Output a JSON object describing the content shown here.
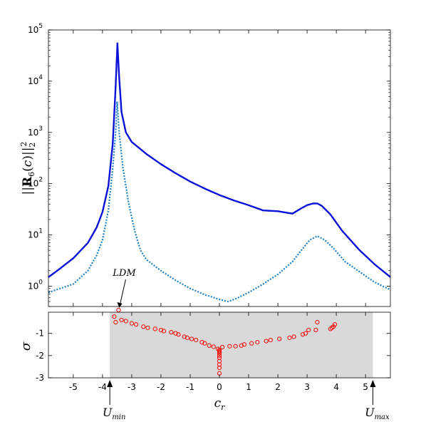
{
  "chart_data": [
    {
      "type": "line",
      "yscale": "log",
      "xlim": [
        -5.85,
        5.85
      ],
      "ylim": [
        0.4,
        100000
      ],
      "ylabel": "||R6(c)||2^2",
      "ylabel_parts": {
        "open": "||",
        "bold": "R",
        "sub": "6",
        "mid": "(",
        "var": "c",
        "close": ")||",
        "sub2": "2",
        "sup": "2"
      },
      "xticks": [
        -5,
        -4,
        -3,
        -2,
        -1,
        0,
        1,
        2,
        3,
        4,
        5
      ],
      "yticks": [
        {
          "value": 1,
          "base": "10",
          "exp": "0"
        },
        {
          "value": 10,
          "base": "10",
          "exp": "1"
        },
        {
          "value": 100,
          "base": "10",
          "exp": "2"
        },
        {
          "value": 1000,
          "base": "10",
          "exp": "3"
        },
        {
          "value": 10000,
          "base": "10",
          "exp": "4"
        },
        {
          "value": 100000,
          "base": "10",
          "exp": "5"
        }
      ],
      "grid": false,
      "series": [
        {
          "style": "solid",
          "color": "#0a12d8",
          "points": [
            [
              -5.85,
              1.5
            ],
            [
              -5.5,
              2.1
            ],
            [
              -5.0,
              3.5
            ],
            [
              -4.5,
              7.0
            ],
            [
              -4.2,
              14.0
            ],
            [
              -4.0,
              28.0
            ],
            [
              -3.8,
              90.0
            ],
            [
              -3.65,
              600.0
            ],
            [
              -3.55,
              8000.0
            ],
            [
              -3.49,
              55000.0
            ],
            [
              -3.43,
              12000.0
            ],
            [
              -3.35,
              2500.0
            ],
            [
              -3.2,
              1000.0
            ],
            [
              -3.0,
              650.0
            ],
            [
              -2.5,
              380.0
            ],
            [
              -2.0,
              240.0
            ],
            [
              -1.5,
              160.0
            ],
            [
              -1.0,
              110.0
            ],
            [
              -0.5,
              80.0
            ],
            [
              0.0,
              60.0
            ],
            [
              0.5,
              47.0
            ],
            [
              1.0,
              38.0
            ],
            [
              1.5,
              30.0
            ],
            [
              2.0,
              29.0
            ],
            [
              2.5,
              26.0
            ],
            [
              2.8,
              33.0
            ],
            [
              3.0,
              38.0
            ],
            [
              3.2,
              41.0
            ],
            [
              3.35,
              41.0
            ],
            [
              3.5,
              37.0
            ],
            [
              3.8,
              25.0
            ],
            [
              4.2,
              12.0
            ],
            [
              4.8,
              5.0
            ],
            [
              5.3,
              2.7
            ],
            [
              5.85,
              1.5
            ]
          ]
        },
        {
          "style": "dotted",
          "color": "#1e7fc4",
          "points": [
            [
              -5.85,
              0.75
            ],
            [
              -5.0,
              1.1
            ],
            [
              -4.5,
              2.0
            ],
            [
              -4.2,
              4.0
            ],
            [
              -4.0,
              8.0
            ],
            [
              -3.8,
              30.0
            ],
            [
              -3.65,
              200.0
            ],
            [
              -3.55,
              1000.0
            ],
            [
              -3.5,
              4000.0
            ],
            [
              -3.43,
              1000.0
            ],
            [
              -3.3,
              200.0
            ],
            [
              -3.1,
              40.0
            ],
            [
              -2.9,
              12.0
            ],
            [
              -2.7,
              5.0
            ],
            [
              -2.5,
              3.3
            ],
            [
              -2.0,
              2.0
            ],
            [
              -1.5,
              1.3
            ],
            [
              -1.0,
              0.9
            ],
            [
              -0.5,
              0.68
            ],
            [
              0.0,
              0.55
            ],
            [
              0.3,
              0.5
            ],
            [
              0.6,
              0.58
            ],
            [
              1.0,
              0.75
            ],
            [
              1.5,
              1.1
            ],
            [
              2.0,
              1.7
            ],
            [
              2.5,
              3.0
            ],
            [
              2.8,
              5.0
            ],
            [
              3.1,
              8.0
            ],
            [
              3.35,
              9.5
            ],
            [
              3.6,
              8.0
            ],
            [
              3.9,
              5.5
            ],
            [
              4.3,
              3.0
            ],
            [
              4.8,
              1.9
            ],
            [
              5.3,
              1.2
            ],
            [
              5.85,
              0.85
            ]
          ]
        }
      ]
    },
    {
      "type": "scatter",
      "xlim": [
        -5.85,
        5.85
      ],
      "ylim": [
        -3,
        -0.05
      ],
      "xlabel": "c",
      "xlabel_sub": "r",
      "ylabel": "σ",
      "xticks": [
        -5,
        -4,
        -3,
        -2,
        -1,
        0,
        1,
        2,
        3,
        4,
        5
      ],
      "yticks": [
        -3,
        -2,
        -1
      ],
      "shaded_region": {
        "x0": -3.75,
        "x1": 5.25,
        "color": "#d9d9d9"
      },
      "marker": {
        "shape": "circle-open",
        "color": "#ff0000"
      },
      "points": [
        [
          -3.45,
          0.05
        ],
        [
          -3.6,
          -0.25
        ],
        [
          -3.55,
          -0.5
        ],
        [
          -3.35,
          -0.4
        ],
        [
          -3.2,
          -0.45
        ],
        [
          -3.0,
          -0.55
        ],
        [
          -2.85,
          -0.6
        ],
        [
          -2.6,
          -0.7
        ],
        [
          -2.45,
          -0.75
        ],
        [
          -2.2,
          -0.8
        ],
        [
          -2.0,
          -0.85
        ],
        [
          -1.9,
          -0.9
        ],
        [
          -1.65,
          -0.95
        ],
        [
          -1.5,
          -1.0
        ],
        [
          -1.4,
          -1.05
        ],
        [
          -1.2,
          -1.15
        ],
        [
          -1.1,
          -1.2
        ],
        [
          -0.95,
          -1.25
        ],
        [
          -0.8,
          -1.3
        ],
        [
          -0.6,
          -1.4
        ],
        [
          -0.5,
          -1.45
        ],
        [
          -0.35,
          -1.55
        ],
        [
          -0.2,
          -1.6
        ],
        [
          -0.05,
          -1.7
        ],
        [
          0.1,
          -1.62
        ],
        [
          0.35,
          -1.58
        ],
        [
          0.55,
          -1.58
        ],
        [
          0.75,
          -1.55
        ],
        [
          0.85,
          -1.5
        ],
        [
          1.1,
          -1.45
        ],
        [
          1.3,
          -1.4
        ],
        [
          1.6,
          -1.35
        ],
        [
          1.75,
          -1.3
        ],
        [
          2.05,
          -1.25
        ],
        [
          2.4,
          -1.2
        ],
        [
          2.55,
          -1.15
        ],
        [
          2.85,
          -1.05
        ],
        [
          2.95,
          -1.0
        ],
        [
          3.05,
          -0.85
        ],
        [
          3.3,
          -0.85
        ],
        [
          3.35,
          -0.5
        ],
        [
          3.8,
          -0.8
        ],
        [
          3.85,
          -0.75
        ],
        [
          3.9,
          -0.7
        ],
        [
          3.95,
          -0.6
        ],
        [
          0.0,
          -1.75
        ],
        [
          0.0,
          -1.8
        ],
        [
          0.0,
          -1.85
        ],
        [
          0.0,
          -1.9
        ],
        [
          0.0,
          -2.0
        ],
        [
          0.0,
          -2.1
        ],
        [
          0.0,
          -2.25
        ],
        [
          0.0,
          -2.4
        ],
        [
          0.0,
          -2.55
        ],
        [
          0.0,
          -2.8
        ]
      ]
    }
  ],
  "annotations": [
    {
      "id": "ldm",
      "text": "LDM",
      "x": -3.45,
      "y": 0.05
    },
    {
      "id": "umin",
      "text": "U",
      "sub": "min",
      "x": -3.75
    },
    {
      "id": "umax",
      "text": "U",
      "sub": "max",
      "x": 5.25
    }
  ],
  "colors": {
    "axis": "#000000",
    "shade": "#d9d9d9",
    "marker": "#ff0000"
  }
}
